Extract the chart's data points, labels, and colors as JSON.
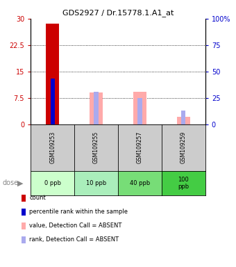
{
  "title": "GDS2927 / Dr.15778.1.A1_at",
  "samples": [
    "GSM109253",
    "GSM109255",
    "GSM109257",
    "GSM109259"
  ],
  "doses": [
    "0 ppb",
    "10 ppb",
    "40 ppb",
    "100\nppb"
  ],
  "dose_colors": [
    "#ccffcc",
    "#aaeebb",
    "#77dd77",
    "#44cc44"
  ],
  "sample_bg": "#cccccc",
  "count_values": [
    28.5,
    0,
    0,
    0
  ],
  "percentile_values": [
    13.0,
    0,
    0,
    0
  ],
  "absent_value": [
    0,
    9.0,
    9.2,
    2.0
  ],
  "absent_rank": [
    0,
    9.2,
    7.4,
    3.8
  ],
  "count_color": "#cc0000",
  "percentile_color": "#0000cc",
  "absent_value_color": "#ffaaaa",
  "absent_rank_color": "#aaaaee",
  "left_ylim": [
    0,
    30
  ],
  "left_yticks": [
    0,
    7.5,
    15,
    22.5,
    30
  ],
  "left_yticklabels": [
    "0",
    "7.5",
    "15",
    "22.5",
    "30"
  ],
  "right_yticks": [
    0,
    7.5,
    15,
    22.5,
    30
  ],
  "right_yticklabels": [
    "0",
    "25",
    "50",
    "75",
    "100%"
  ],
  "legend_labels": [
    "count",
    "percentile rank within the sample",
    "value, Detection Call = ABSENT",
    "rank, Detection Call = ABSENT"
  ],
  "legend_colors": [
    "#cc0000",
    "#0000cc",
    "#ffaaaa",
    "#aaaaee"
  ]
}
